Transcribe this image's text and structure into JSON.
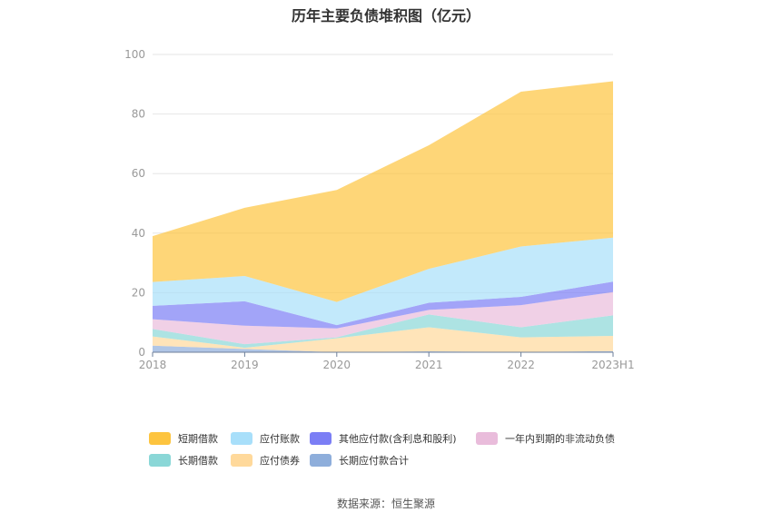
{
  "chart_data": {
    "type": "area",
    "stacked": true,
    "title": "历年主要负债堆积图（亿元）",
    "categories": [
      "2018",
      "2019",
      "2020",
      "2021",
      "2022",
      "2023H1"
    ],
    "ylim": [
      0,
      100
    ],
    "yticks": [
      "0",
      "20",
      "40",
      "60",
      "80",
      "100"
    ],
    "grid": true,
    "legend_position": "bottom",
    "series": [
      {
        "name": "长期应付款合计",
        "color": "#8eaedb",
        "values": [
          2.2,
          1.1,
          0,
          0.3,
          0.1,
          0.4
        ]
      },
      {
        "name": "应付债券",
        "color": "#ffd99b",
        "values": [
          3.1,
          0.4,
          4.7,
          8.1,
          4.9,
          5.1
        ]
      },
      {
        "name": "长期借款",
        "color": "#8ad7d7",
        "values": [
          2.5,
          1.2,
          0.3,
          4.3,
          3.4,
          6.9
        ]
      },
      {
        "name": "一年内到期的非流动负债",
        "color": "#e9bcdb",
        "values": [
          3.3,
          6.2,
          3.0,
          1.5,
          7.4,
          7.8
        ]
      },
      {
        "name": "其他应付款(含利息和股利)",
        "color": "#7b7ef5",
        "values": [
          4.5,
          8.2,
          1.1,
          2.4,
          2.8,
          3.5
        ]
      },
      {
        "name": "应付账款",
        "color": "#a8dffa",
        "values": [
          8.0,
          8.5,
          7.8,
          11.4,
          16.9,
          14.8
        ]
      },
      {
        "name": "短期借款",
        "color": "#fdc43f",
        "values": [
          15.4,
          22.9,
          37.6,
          41.5,
          52.0,
          52.5
        ]
      }
    ]
  },
  "source": "数据来源：恒生聚源"
}
